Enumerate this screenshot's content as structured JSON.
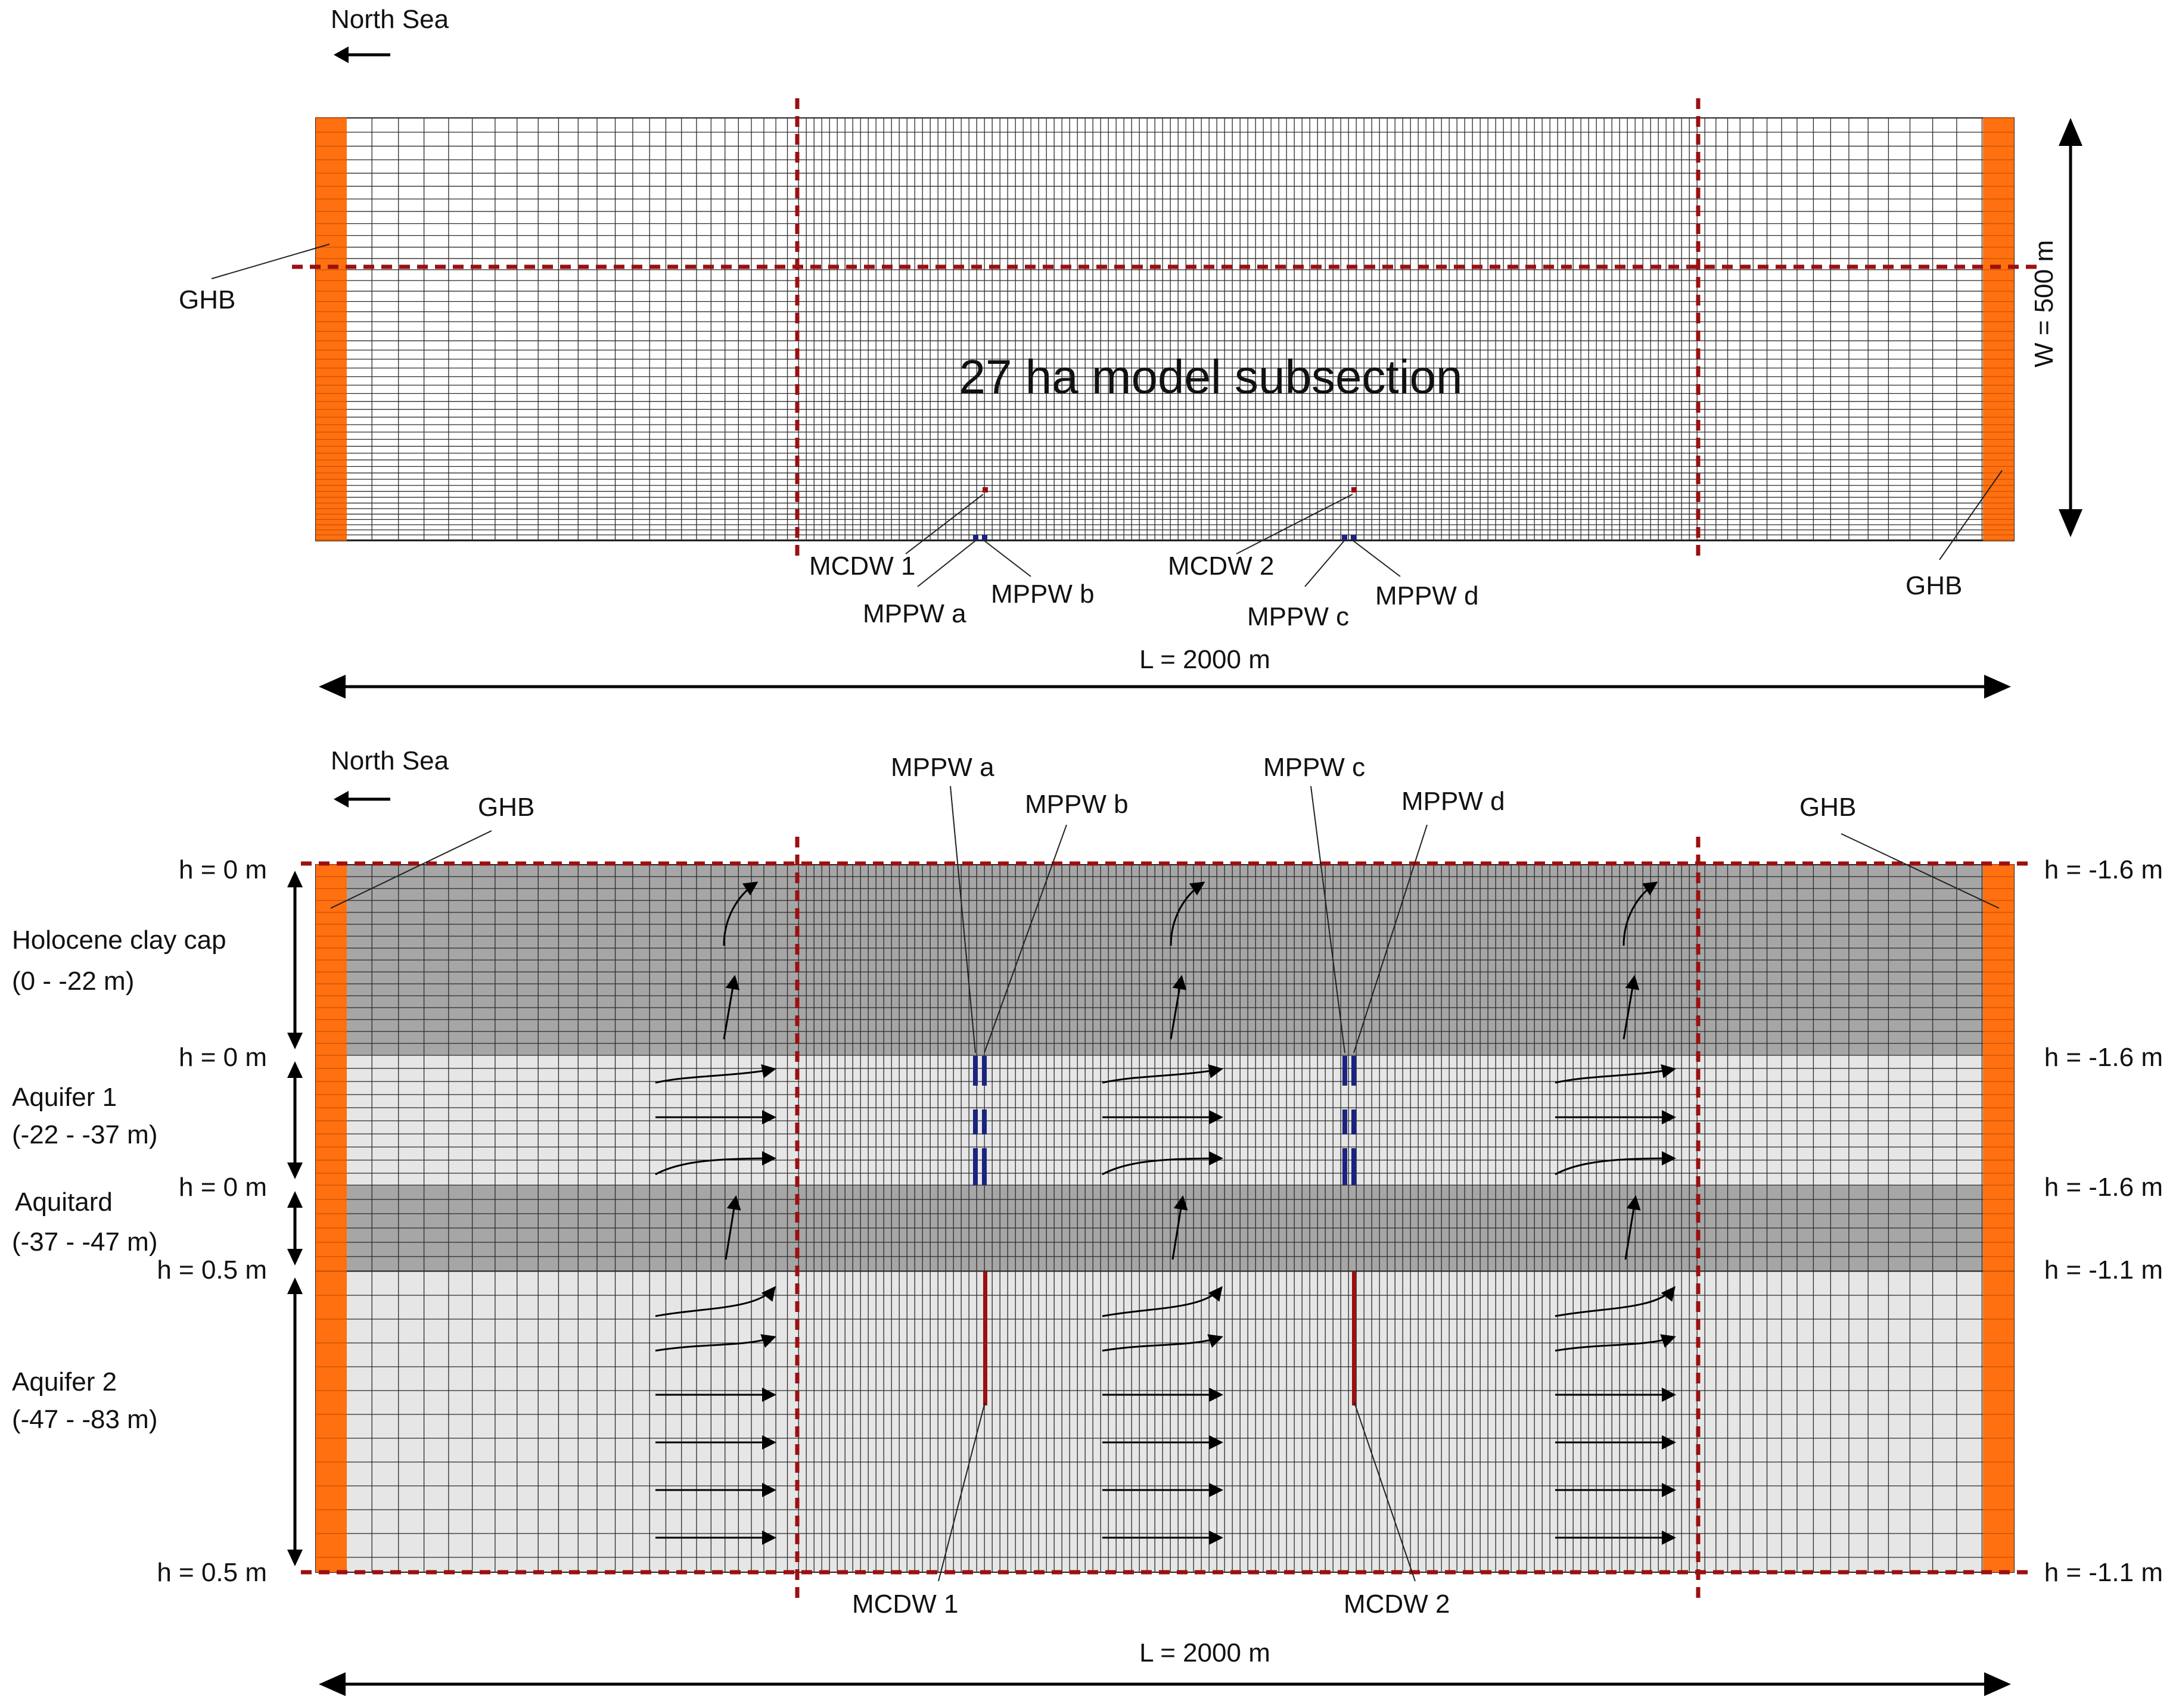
{
  "colors": {
    "ghb_orange": "#ff7010",
    "boundary_red": "#9b1010",
    "well_blue": "#1a237e",
    "clay_gray": "#a6a6a6",
    "aquifer_gray": "#e6e6e6"
  },
  "plan_view": {
    "north_sea_label": "North Sea",
    "subsection_label": "27 ha model subsection",
    "ghb_left_label": "GHB",
    "ghb_right_label": "GHB",
    "width_label": "W = 500 m",
    "length_label": "L = 2000 m",
    "wells": {
      "mcdw1": "MCDW 1",
      "mcdw2": "MCDW 2",
      "mppw_a": "MPPW a",
      "mppw_b": "MPPW b",
      "mppw_c": "MPPW c",
      "mppw_d": "MPPW d"
    }
  },
  "cross_section": {
    "north_sea_label": "North Sea",
    "ghb_left_label": "GHB",
    "ghb_right_label": "GHB",
    "length_label": "L = 2000 m",
    "wells": {
      "mppw_a": "MPPW a",
      "mppw_b": "MPPW b",
      "mppw_c": "MPPW c",
      "mppw_d": "MPPW d",
      "mcdw1": "MCDW 1",
      "mcdw2": "MCDW 2"
    },
    "layers": [
      {
        "name": "Holocene clay cap",
        "range": "(0 - -22 m)"
      },
      {
        "name": "Aquifer 1",
        "range": "(-22 - -37 m)"
      },
      {
        "name": "Aquitard",
        "range": "(-37 - -47 m)"
      },
      {
        "name": "Aquifer 2",
        "range": "(-47 - -83 m)"
      }
    ],
    "heads_left": [
      "h = 0 m",
      "h = 0 m",
      "h = 0 m",
      "h = 0.5 m",
      "h = 0.5 m"
    ],
    "heads_right": [
      "h = -1.6 m",
      "h = -1.6 m",
      "h = -1.6 m",
      "h = -1.1 m",
      "h = -1.1 m"
    ]
  }
}
